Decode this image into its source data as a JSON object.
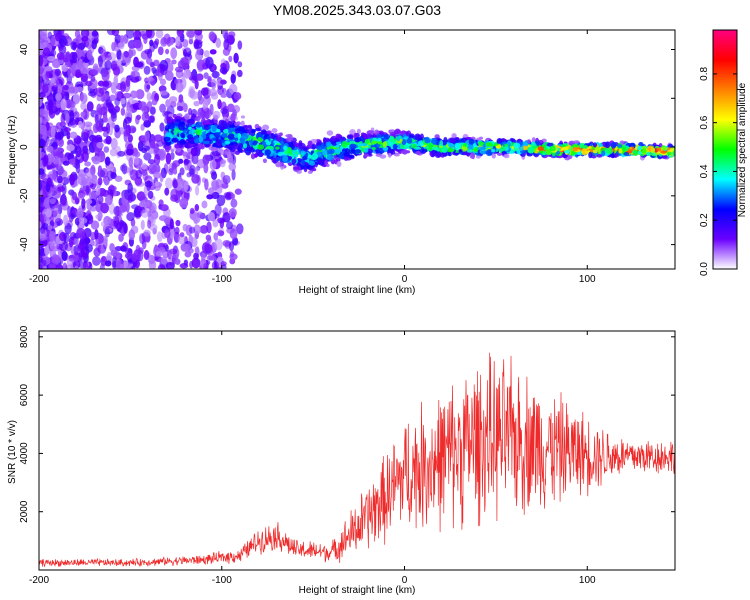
{
  "page": {
    "title": "YM08.2025.343.03.07.G03"
  },
  "chart_data": [
    {
      "type": "heatmap",
      "name": "spectrogram",
      "xlabel": "Height of straight line (km)",
      "ylabel": "Frequency (Hz)",
      "xlim": [
        -200,
        148
      ],
      "ylim": [
        -50,
        48
      ],
      "x_ticks": [
        -200,
        -100,
        0,
        100
      ],
      "y_ticks": [
        -40,
        -20,
        0,
        20,
        40
      ],
      "ridge": {
        "x": [
          -120,
          -100,
          -80,
          -60,
          -55,
          -40,
          -20,
          0,
          20,
          40,
          60,
          80,
          100,
          120,
          148
        ],
        "freq": [
          6,
          5,
          2,
          -3,
          -5,
          -1,
          1,
          2,
          0,
          0,
          0,
          -1,
          -1,
          -1,
          -2
        ],
        "amplitude": [
          0.45,
          0.45,
          0.5,
          0.5,
          0.45,
          0.5,
          0.55,
          0.55,
          0.55,
          0.6,
          0.65,
          0.8,
          0.85,
          0.9,
          0.9
        ]
      },
      "colorbar": {
        "label": "Normalized spectral amplitude",
        "range": [
          0,
          0.98
        ],
        "ticks": [
          0.0,
          0.2,
          0.4,
          0.6,
          0.8
        ],
        "tick_labels": [
          "0.0",
          "0.2",
          "0.4",
          "0.6",
          "0.8"
        ],
        "colormap": [
          "#ffffff",
          "#6a00ff",
          "#0000ff",
          "#00ffff",
          "#00ff00",
          "#ffff00",
          "#ff8000",
          "#ff0000",
          "#ff0080"
        ]
      }
    },
    {
      "type": "line",
      "name": "snr-trace",
      "xlabel": "Height of straight line (km)",
      "ylabel": "SNR (10 * v/v)",
      "xlim": [
        -200,
        148
      ],
      "ylim": [
        0,
        8200
      ],
      "x_ticks": [
        -200,
        -100,
        0,
        100
      ],
      "y_ticks": [
        2000,
        4000,
        6000,
        8000
      ],
      "color": "#ee2a2a",
      "envelope": {
        "x": [
          -200,
          -150,
          -110,
          -90,
          -80,
          -70,
          -60,
          -40,
          -25,
          -10,
          0,
          20,
          40,
          60,
          80,
          100,
          120,
          148
        ],
        "mean": [
          250,
          250,
          350,
          500,
          1000,
          1200,
          700,
          600,
          1500,
          2500,
          3300,
          3800,
          4500,
          4500,
          4200,
          4000,
          3900,
          3900
        ],
        "spread": [
          150,
          150,
          200,
          300,
          500,
          600,
          400,
          400,
          1200,
          1800,
          2300,
          2800,
          3300,
          3100,
          2400,
          1600,
          800,
          700
        ]
      }
    }
  ]
}
